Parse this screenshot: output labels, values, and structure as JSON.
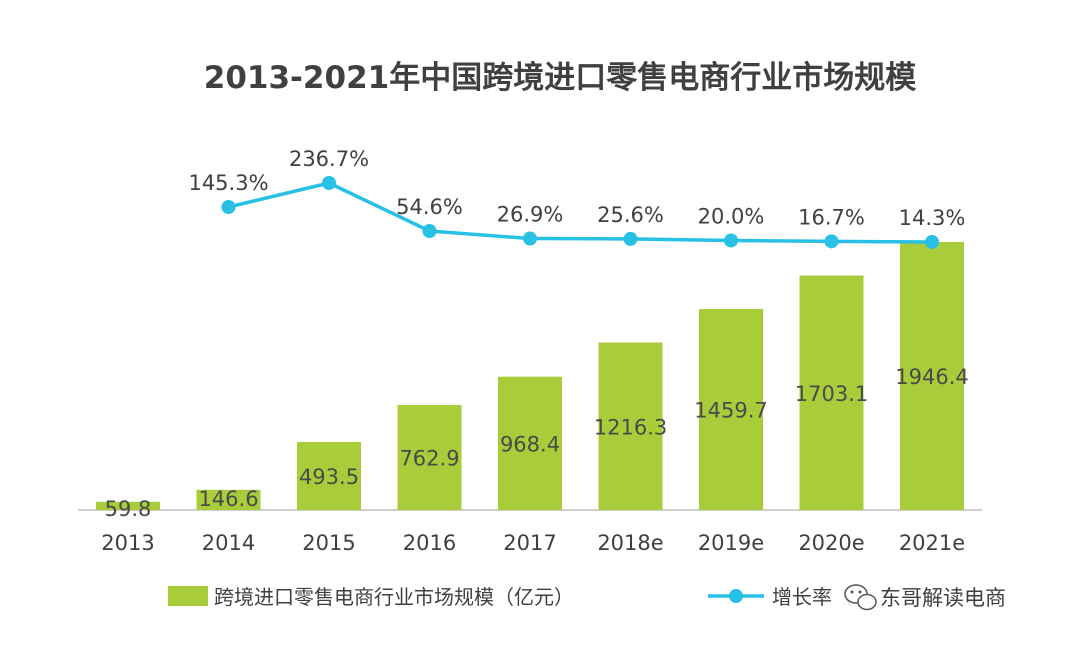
{
  "colors": {
    "bar": "#a9cc3a",
    "line": "#29c0e6",
    "text": "#404040",
    "axis": "#bfbfbf"
  },
  "chart_data": {
    "type": "bar",
    "title": "2013-2021年中国跨境进口零售电商行业市场规模",
    "categories": [
      "2013",
      "2014",
      "2015",
      "2016",
      "2017",
      "2018e",
      "2019e",
      "2020e",
      "2021e"
    ],
    "series": [
      {
        "name": "跨境进口零售电商行业市场规模（亿元）",
        "type": "bar",
        "values": [
          59.8,
          146.6,
          493.5,
          762.9,
          968.4,
          1216.3,
          1459.7,
          1703.1,
          1946.4
        ],
        "labels": [
          "59.8",
          "146.6",
          "493.5",
          "762.9",
          "968.4",
          "1216.3",
          "1459.7",
          "1703.1",
          "1946.4"
        ]
      },
      {
        "name": "增长率（%）",
        "type": "line",
        "values": [
          null,
          145.3,
          236.7,
          54.6,
          26.9,
          25.6,
          20.0,
          16.7,
          14.3
        ],
        "labels": [
          "",
          "145.3%",
          "236.7%",
          "54.6%",
          "26.9%",
          "25.6%",
          "20.0%",
          "16.7%",
          "14.3%"
        ]
      }
    ],
    "ylim": [
      0,
      2050
    ],
    "legend": "bottom"
  },
  "legend": {
    "bar_label": "跨境进口零售电商行业市场规模（亿元）",
    "line_label": "增长率（%"
  },
  "watermark": {
    "text": "东哥解读电商",
    "icon": "wechat-icon"
  }
}
